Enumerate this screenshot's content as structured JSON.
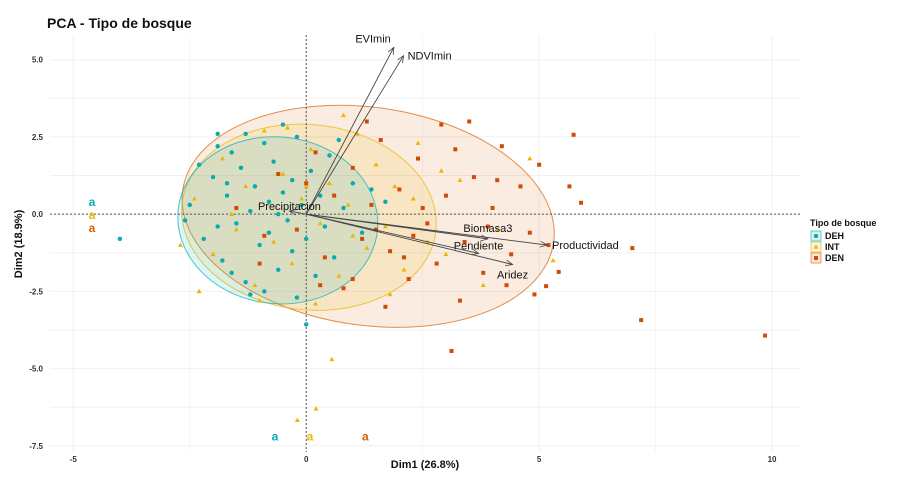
{
  "chart_data": {
    "type": "scatter",
    "title": "PCA - Tipo de bosque",
    "xlabel": "Dim1 (26.8%)",
    "ylabel": "Dim2 (18.9%)",
    "xlim": [
      -5.5,
      10.6
    ],
    "ylim": [
      -7.7,
      5.8
    ],
    "x_ticks": [
      -5,
      0,
      5,
      10
    ],
    "x_tick_labels": [
      "-5",
      "0",
      "5",
      "10"
    ],
    "y_ticks": [
      5,
      2.5,
      0,
      -2.5,
      -5,
      -7.5
    ],
    "y_tick_labels": [
      "5.0",
      "2.5",
      "0.0",
      "-2.5",
      "-5.0",
      "-7.5"
    ],
    "grid": true,
    "legend": {
      "title": "Tipo de bosque",
      "placement": "right"
    },
    "series": [
      {
        "name": "DEH",
        "color": "#1AA59A",
        "fill": "#00AFBB",
        "marker": "circle",
        "ellipse": {
          "center": [
            -0.61,
            -0.2
          ],
          "semi_axes": [
            2.15,
            2.7
          ],
          "angle_deg": -6
        },
        "points": [
          [
            -2.5,
            0.3
          ],
          [
            -2.2,
            -0.8
          ],
          [
            -2.0,
            1.2
          ],
          [
            -1.8,
            -1.5
          ],
          [
            -1.7,
            0.6
          ],
          [
            -1.6,
            2.0
          ],
          [
            -1.5,
            -0.3
          ],
          [
            -1.4,
            1.5
          ],
          [
            -1.3,
            -2.2
          ],
          [
            -1.2,
            0.1
          ],
          [
            -1.1,
            0.9
          ],
          [
            -1.0,
            -1.0
          ],
          [
            -0.9,
            2.3
          ],
          [
            -0.8,
            0.4
          ],
          [
            -0.8,
            -0.6
          ],
          [
            -0.7,
            1.7
          ],
          [
            -0.6,
            -1.8
          ],
          [
            -0.5,
            0.7
          ],
          [
            -0.4,
            -0.2
          ],
          [
            -0.3,
            1.1
          ],
          [
            -0.3,
            -1.2
          ],
          [
            -0.2,
            2.5
          ],
          [
            -0.1,
            0.3
          ],
          [
            0.0,
            -0.8
          ],
          [
            0.1,
            1.4
          ],
          [
            0.2,
            -2.0
          ],
          [
            0.3,
            0.6
          ],
          [
            0.4,
            -0.4
          ],
          [
            0.5,
            1.9
          ],
          [
            0.6,
            -1.4
          ],
          [
            0.8,
            0.2
          ],
          [
            1.0,
            1.0
          ],
          [
            1.2,
            -0.6
          ],
          [
            1.4,
            0.8
          ],
          [
            -2.6,
            -0.2
          ],
          [
            -1.9,
            -0.4
          ],
          [
            -1.3,
            2.6
          ],
          [
            -0.6,
            0.0
          ],
          [
            -1.7,
            1.0
          ],
          [
            -0.9,
            -2.5
          ],
          [
            0.0,
            -3.57
          ],
          [
            -1.2,
            -2.6
          ],
          [
            -0.5,
            2.9
          ],
          [
            -1.9,
            2.2
          ],
          [
            -1.6,
            -1.9
          ],
          [
            0.7,
            2.4
          ],
          [
            -2.3,
            1.6
          ],
          [
            -0.2,
            -2.7
          ],
          [
            1.7,
            0.4
          ],
          [
            -4.0,
            -0.8
          ],
          [
            -1.9,
            2.6
          ]
        ]
      },
      {
        "name": "INT",
        "color": "#E7B800",
        "fill": "#E7B800",
        "marker": "triangle",
        "ellipse": {
          "center": [
            0.06,
            -0.1
          ],
          "semi_axes": [
            2.74,
            3.0
          ],
          "angle_deg": -6
        },
        "points": [
          [
            -2.4,
            0.5
          ],
          [
            -2.0,
            -1.3
          ],
          [
            -1.8,
            1.8
          ],
          [
            -1.5,
            -0.5
          ],
          [
            -1.3,
            0.9
          ],
          [
            -1.1,
            -2.3
          ],
          [
            -0.9,
            2.7
          ],
          [
            -0.7,
            -0.9
          ],
          [
            -0.5,
            1.3
          ],
          [
            -0.3,
            -1.6
          ],
          [
            -0.1,
            0.5
          ],
          [
            0.1,
            2.1
          ],
          [
            0.3,
            -0.3
          ],
          [
            0.5,
            1.0
          ],
          [
            0.7,
            -2.0
          ],
          [
            0.9,
            0.3
          ],
          [
            1.1,
            2.6
          ],
          [
            1.3,
            -1.1
          ],
          [
            1.5,
            1.6
          ],
          [
            1.7,
            -0.4
          ],
          [
            1.9,
            0.9
          ],
          [
            2.1,
            -1.8
          ],
          [
            2.3,
            0.5
          ],
          [
            2.6,
            -0.9
          ],
          [
            2.9,
            1.4
          ],
          [
            -1.0,
            -2.8
          ],
          [
            -2.3,
            -2.5
          ],
          [
            0.2,
            -2.9
          ],
          [
            0.55,
            -4.7
          ],
          [
            0.21,
            -6.3
          ],
          [
            -0.19,
            -6.67
          ],
          [
            5.3,
            -1.5
          ],
          [
            4.8,
            1.8
          ],
          [
            3.8,
            -2.3
          ],
          [
            3.3,
            1.1
          ],
          [
            -0.4,
            2.8
          ],
          [
            0.8,
            3.2
          ],
          [
            2.4,
            2.3
          ],
          [
            1.8,
            -2.6
          ],
          [
            -1.6,
            0.0
          ],
          [
            0.0,
            0.9
          ],
          [
            1.0,
            -0.7
          ],
          [
            4.1,
            -0.5
          ],
          [
            3.0,
            -1.3
          ],
          [
            -2.7,
            -1.0
          ]
        ]
      },
      {
        "name": "DEN",
        "color": "#D24A05",
        "fill": "#D95F02",
        "marker": "square",
        "ellipse": {
          "center": [
            1.33,
            -0.07
          ],
          "semi_axes": [
            4.02,
            3.53
          ],
          "angle_deg": -8
        },
        "points": [
          [
            -1.5,
            0.2
          ],
          [
            -1.0,
            -1.6
          ],
          [
            -0.6,
            1.3
          ],
          [
            -0.2,
            -0.5
          ],
          [
            0.2,
            2.0
          ],
          [
            0.4,
            -1.4
          ],
          [
            0.6,
            0.6
          ],
          [
            0.8,
            -2.4
          ],
          [
            1.0,
            1.5
          ],
          [
            1.2,
            -0.8
          ],
          [
            1.4,
            0.3
          ],
          [
            1.6,
            2.4
          ],
          [
            1.8,
            -1.2
          ],
          [
            2.0,
            0.8
          ],
          [
            2.2,
            -2.1
          ],
          [
            2.4,
            1.8
          ],
          [
            2.6,
            -0.3
          ],
          [
            2.8,
            -1.6
          ],
          [
            3.0,
            0.6
          ],
          [
            3.2,
            2.1
          ],
          [
            3.4,
            -0.9
          ],
          [
            3.6,
            1.2
          ],
          [
            3.8,
            -1.9
          ],
          [
            4.0,
            0.2
          ],
          [
            4.2,
            2.2
          ],
          [
            4.4,
            -1.3
          ],
          [
            4.6,
            0.9
          ],
          [
            4.8,
            -0.6
          ],
          [
            5.0,
            1.6
          ],
          [
            5.2,
            -1.0
          ],
          [
            1.3,
            3.0
          ],
          [
            2.9,
            2.9
          ],
          [
            3.3,
            -2.8
          ],
          [
            0.3,
            -2.3
          ],
          [
            1.7,
            -3.0
          ],
          [
            4.3,
            -2.3
          ],
          [
            4.9,
            -2.6
          ],
          [
            5.74,
            2.57
          ],
          [
            5.65,
            0.9
          ],
          [
            5.9,
            0.37
          ],
          [
            7.0,
            -1.1
          ],
          [
            5.42,
            -1.87
          ],
          [
            5.15,
            -2.33
          ],
          [
            7.19,
            -3.43
          ],
          [
            9.85,
            -3.93
          ],
          [
            3.12,
            -4.43
          ],
          [
            1.0,
            -2.1
          ],
          [
            2.1,
            -1.4
          ],
          [
            0.0,
            1.0
          ],
          [
            2.5,
            0.2
          ],
          [
            3.5,
            3.0
          ],
          [
            -0.9,
            -0.7
          ],
          [
            1.5,
            -0.5
          ],
          [
            2.3,
            -0.7
          ],
          [
            4.1,
            1.1
          ],
          [
            3.9,
            -0.4
          ]
        ]
      }
    ],
    "variables": [
      {
        "name": "EVImin",
        "x": 1.88,
        "y": 5.4
      },
      {
        "name": "NDVImin",
        "x": 2.09,
        "y": 5.13
      },
      {
        "name": "Precipitacion",
        "x": -0.36,
        "y": 0.1
      },
      {
        "name": "Biomasa3",
        "x": 3.9,
        "y": -0.8
      },
      {
        "name": "Productividad",
        "x": 5.17,
        "y": -1.0
      },
      {
        "name": "Pendiente",
        "x": 3.7,
        "y": -1.27
      },
      {
        "name": "Aridez",
        "x": 4.43,
        "y": -1.63
      }
    ],
    "annotations": [
      {
        "text": "a",
        "group": "DEH",
        "x": -4.6,
        "y": 0.4
      },
      {
        "text": "a",
        "group": "INT",
        "x": -4.6,
        "y": 0.07
      },
      {
        "text": "a",
        "group": "DEN",
        "x": -4.6,
        "y": -0.2
      },
      {
        "text": "a",
        "group": "DEH",
        "x": -0.67,
        "y": -7.2
      },
      {
        "text": "a",
        "group": "INT",
        "x": 0.08,
        "y": -7.2
      },
      {
        "text": "a",
        "group": "DEN",
        "x": 1.27,
        "y": -7.2
      }
    ]
  }
}
